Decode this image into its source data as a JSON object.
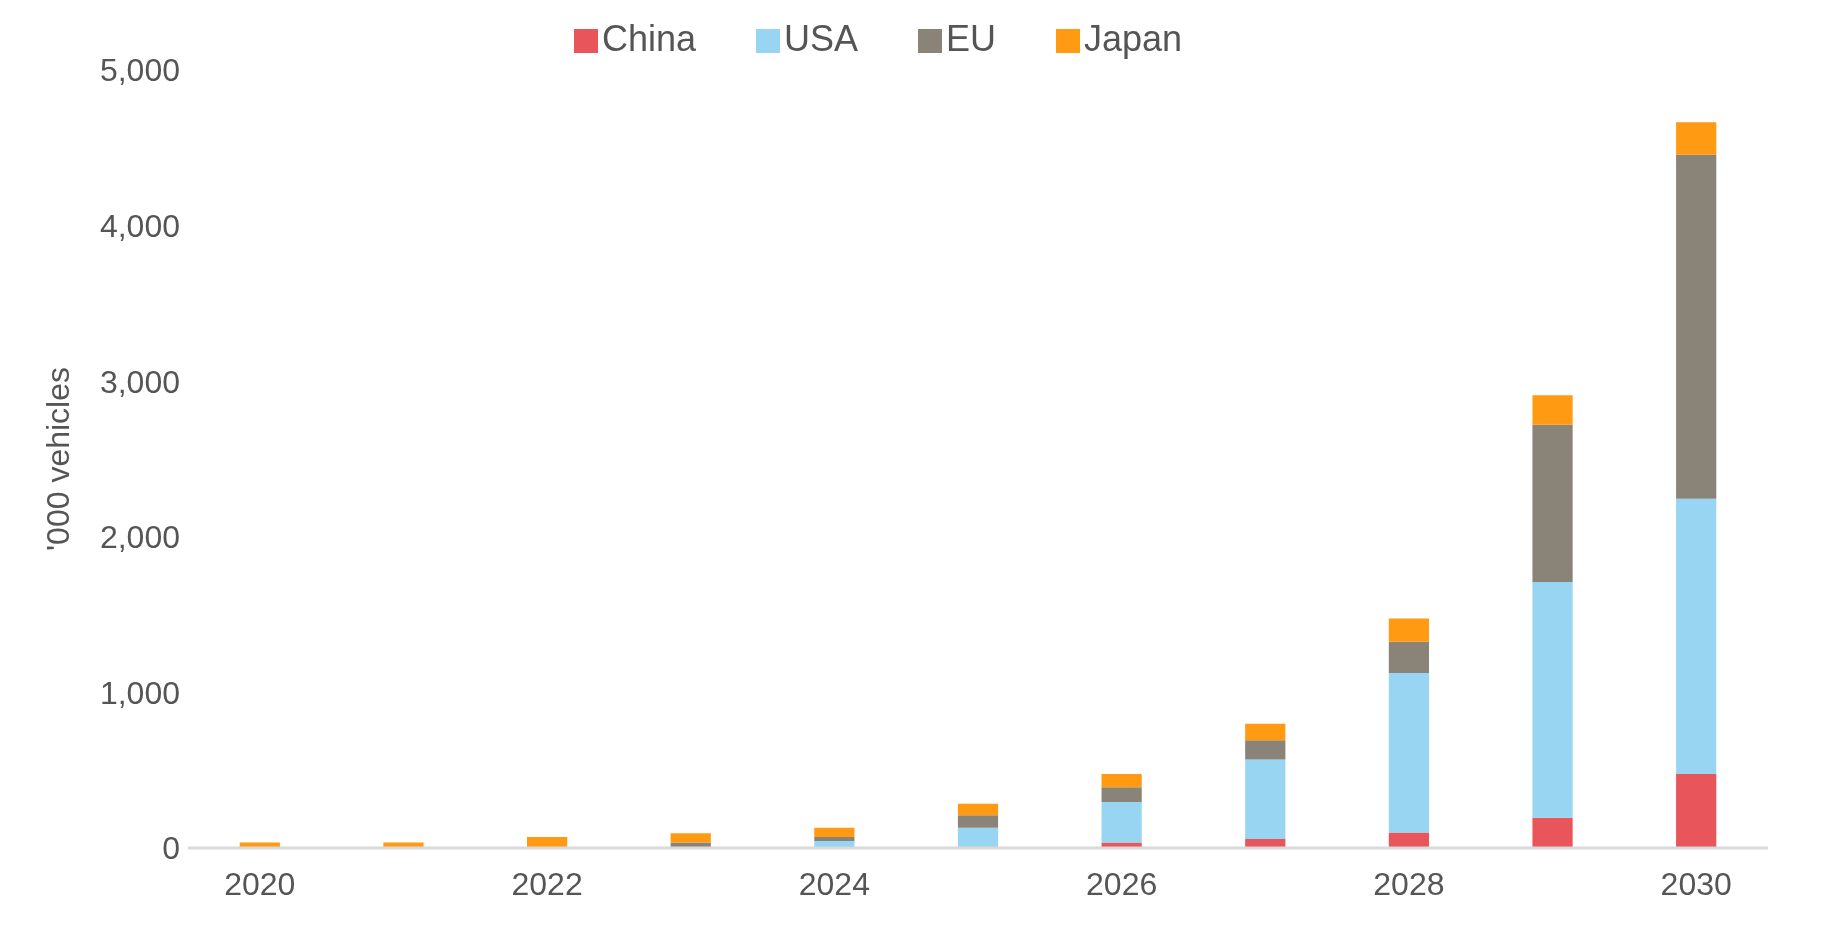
{
  "chart_data": {
    "type": "bar",
    "stacked": true,
    "ylabel": "'000 vehicles",
    "categories": [
      "2020",
      null,
      "2022",
      null,
      "2024",
      null,
      "2026",
      null,
      "2028",
      null,
      "2030"
    ],
    "series": [
      {
        "name": "China",
        "color": "#e8555a",
        "values": [
          0,
          0,
          0,
          0,
          0,
          0,
          36,
          58,
          100,
          195,
          475
        ]
      },
      {
        "name": "USA",
        "color": "#97d5f2",
        "values": [
          0,
          0,
          0,
          0,
          45,
          130,
          260,
          510,
          1025,
          1515,
          1770
        ]
      },
      {
        "name": "EU",
        "color": "#8a8378",
        "values": [
          0,
          0,
          0,
          35,
          25,
          80,
          95,
          125,
          200,
          1010,
          2210
        ]
      },
      {
        "name": "Japan",
        "color": "#ff9a12",
        "values": [
          35,
          35,
          70,
          60,
          60,
          75,
          85,
          105,
          150,
          190,
          210
        ]
      }
    ],
    "ylim": [
      0,
      5000
    ],
    "yticks": [
      0,
      {
        "value": 1000,
        "label": "1,000"
      },
      {
        "value": 2000,
        "label": "2,000"
      },
      {
        "value": 3000,
        "label": "3,000"
      },
      {
        "value": 4000,
        "label": "4,000"
      },
      {
        "value": 5000,
        "label": "5,000"
      }
    ],
    "grid": false,
    "legend": "top"
  }
}
